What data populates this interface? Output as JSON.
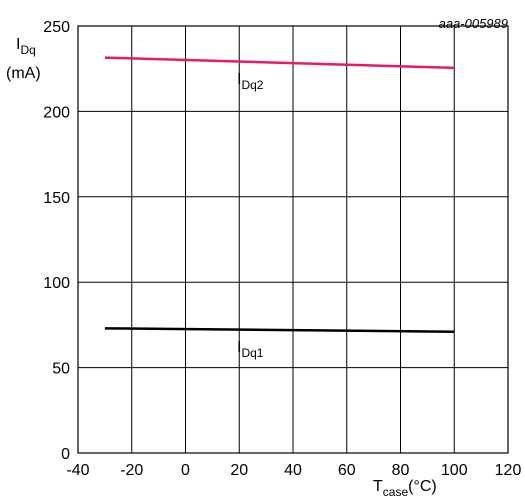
{
  "chart_data": {
    "type": "line",
    "code": "aaa-005989",
    "x": [
      -30,
      100
    ],
    "series": [
      {
        "name": "IDq1",
        "label_main": "I",
        "label_sub": "Dq1",
        "color": "#000000",
        "values": [
          73,
          71
        ]
      },
      {
        "name": "IDq2",
        "label_main": "I",
        "label_sub": "Dq2",
        "color": "#e8196b",
        "values": [
          231.5,
          225.5
        ]
      }
    ],
    "xlim": [
      -40,
      120
    ],
    "ylim": [
      0,
      250
    ],
    "xticks": [
      "-40",
      "-20",
      "0",
      "20",
      "40",
      "60",
      "80",
      "100",
      "120"
    ],
    "yticks": [
      "0",
      "50",
      "100",
      "150",
      "200",
      "250"
    ],
    "ylabel": {
      "main": "I",
      "sub": "Dq",
      "unit": "(mA)"
    },
    "xlabel": {
      "main": "T",
      "sub": "case",
      "unit": "(°C)"
    },
    "grid": true
  }
}
